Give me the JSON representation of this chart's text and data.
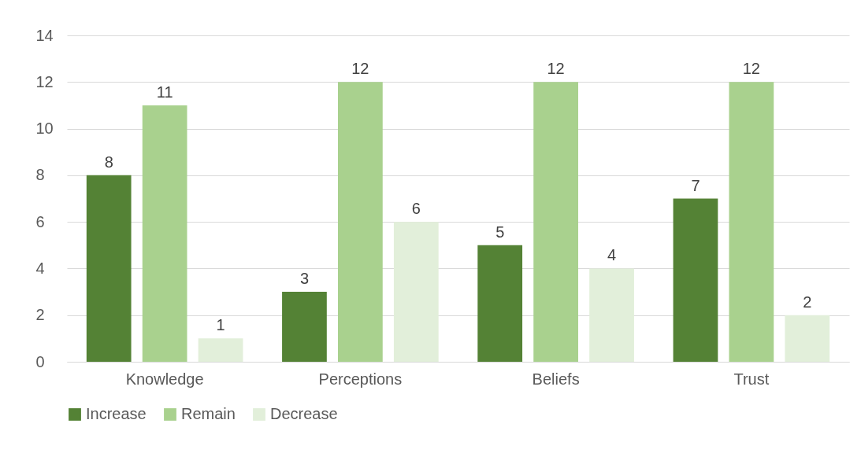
{
  "chart_data": {
    "type": "bar",
    "categories": [
      "Knowledge",
      "Perceptions",
      "Beliefs",
      "Trust"
    ],
    "series": [
      {
        "name": "Increase",
        "color": "#548235",
        "values": [
          8,
          3,
          5,
          7
        ]
      },
      {
        "name": "Remain",
        "color": "#a9d18e",
        "values": [
          11,
          12,
          12,
          12
        ]
      },
      {
        "name": "Decrease",
        "color": "#e2efda",
        "values": [
          1,
          6,
          4,
          2
        ]
      }
    ],
    "ylim": [
      0,
      14
    ],
    "yticks": [
      0,
      2,
      4,
      6,
      8,
      10,
      12,
      14
    ],
    "grid": "y",
    "legend": "bottom",
    "data_labels": true
  }
}
